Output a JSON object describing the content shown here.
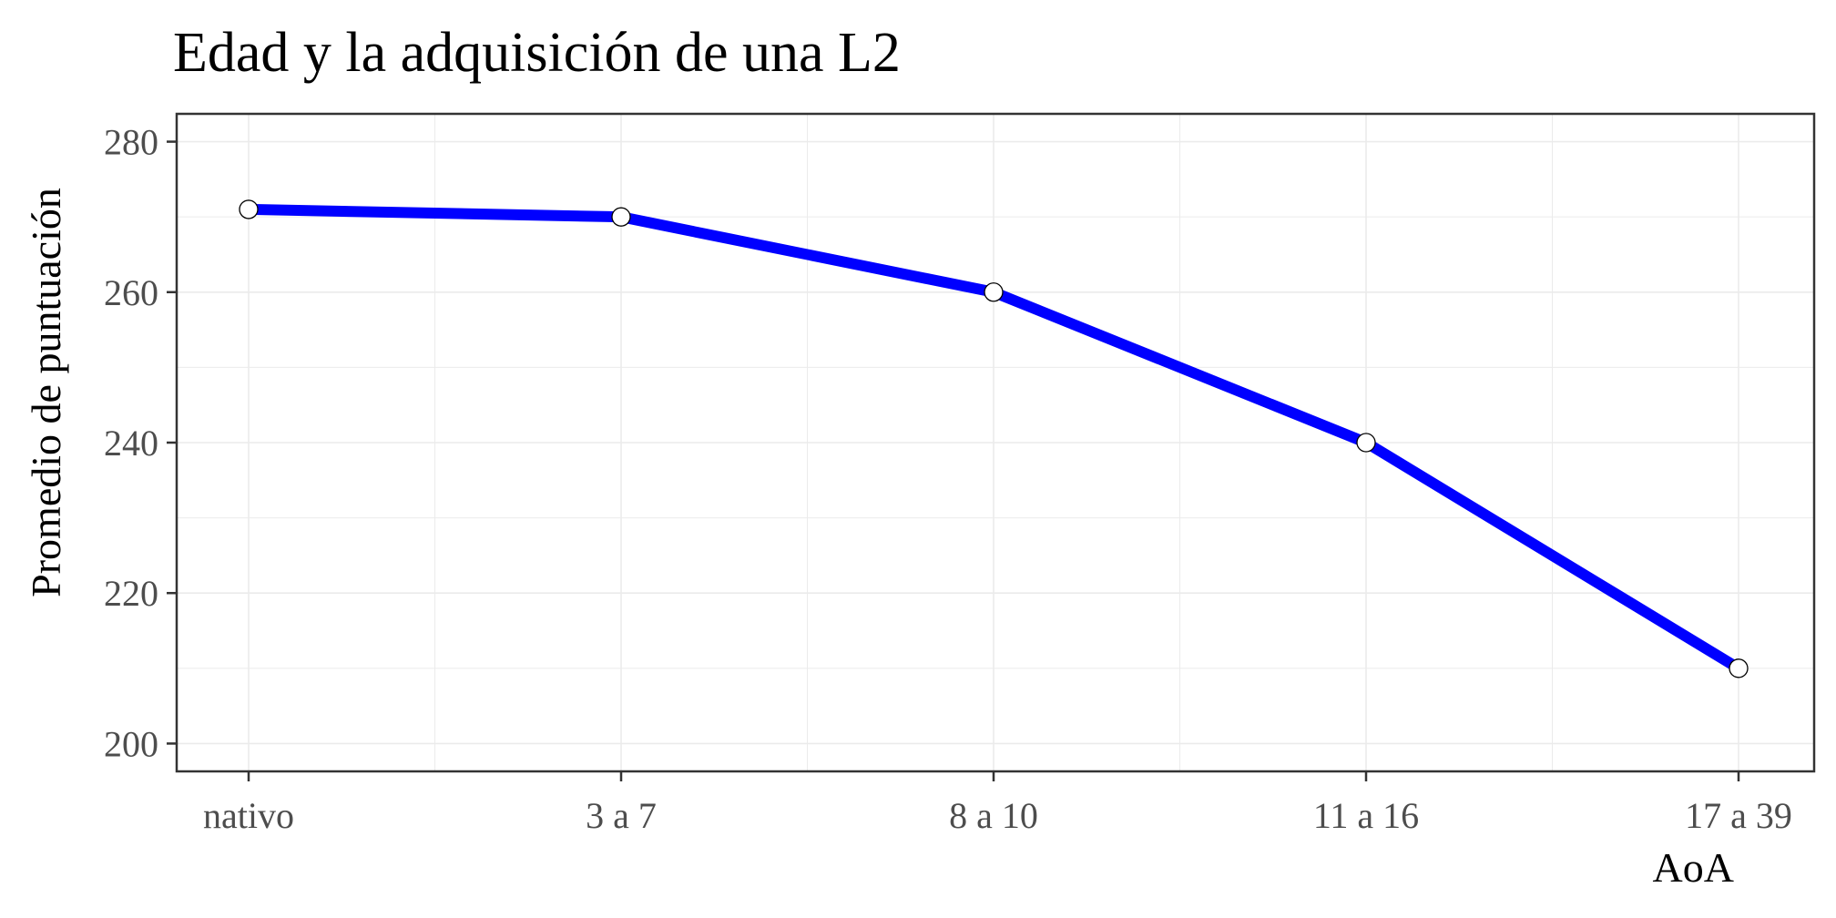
{
  "chart_data": {
    "type": "line",
    "title": "Edad y la adquisición de una L2",
    "xlabel": "AoA",
    "ylabel": "Promedio de puntuación",
    "categories": [
      "nativo",
      "3 a 7",
      "8 a 10",
      "11 a 16",
      "17 a 39"
    ],
    "values": [
      271,
      270,
      260,
      240,
      210
    ],
    "ylim": [
      196.3,
      283.7
    ],
    "yticks": [
      200,
      220,
      240,
      260,
      280
    ],
    "ytick_labels": [
      "200",
      "220",
      "240",
      "260",
      "280"
    ],
    "grid": true,
    "legend": "none",
    "line_color": "#0000ff",
    "point_fill": "#ffffff",
    "point_stroke": "#000000",
    "grid_color": "#ebebeb",
    "panel_border_color": "#333333"
  }
}
